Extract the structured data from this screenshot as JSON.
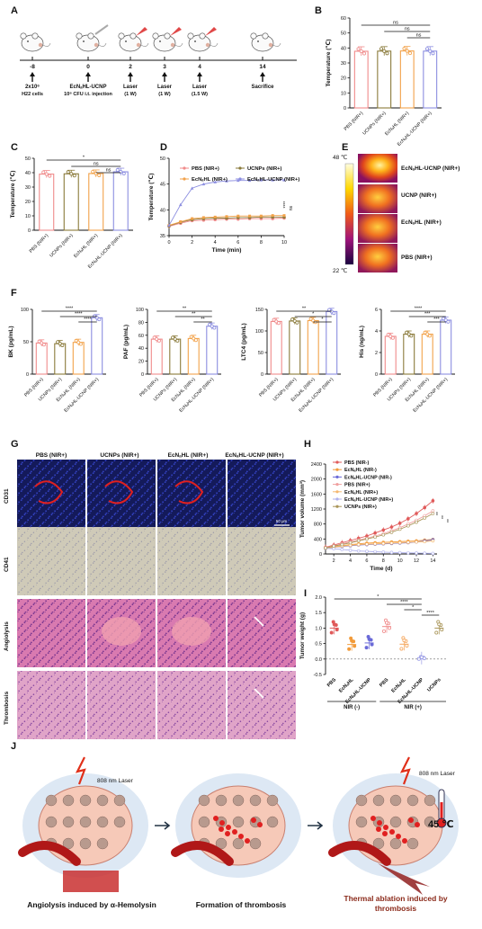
{
  "panels": {
    "A": "A",
    "B": "B",
    "C": "C",
    "D": "D",
    "E": "E",
    "F": "F",
    "G": "G",
    "H": "H",
    "I": "I",
    "J": "J"
  },
  "panelA": {
    "timepoints": [
      "-8",
      "0",
      "2",
      "3",
      "4",
      "14"
    ],
    "events": [
      {
        "line1": "2x10⁶",
        "line2": "H22 cells"
      },
      {
        "line1": "EcNₐHL-UCNP",
        "line2": "10⁸ CFU  i.t. injection"
      },
      {
        "line1": "Laser",
        "line2": "(1 W)"
      },
      {
        "line1": "Laser",
        "line2": "(1 W)"
      },
      {
        "line1": "Laser",
        "line2": "(1.5 W)"
      },
      {
        "line1": "Sacrifice",
        "line2": ""
      }
    ]
  },
  "chart_data": [
    {
      "id": "B",
      "type": "bar",
      "ylabel": "Temperature (℃)",
      "ylim": [
        0,
        60
      ],
      "yticks": [
        "0",
        "10",
        "20",
        "30",
        "40",
        "50",
        "60"
      ],
      "categories": [
        "PBS (NIR+)",
        "UCNPs (NIR+)",
        "EcNₐHL (NIR+)",
        "EcNₐHL-UCNP (NIR+)"
      ],
      "values": [
        37.8,
        37.9,
        38.0,
        37.9
      ],
      "colors": [
        "#f08b8b",
        "#8a7a3a",
        "#f2a24a",
        "#8c8ee0"
      ],
      "sig": [
        "ns",
        "ns",
        "ns"
      ]
    },
    {
      "id": "C",
      "type": "bar",
      "ylabel": "Temperature (℃)",
      "ylim": [
        0,
        50
      ],
      "yticks": [
        "0",
        "10",
        "20",
        "30",
        "40",
        "50"
      ],
      "categories": [
        "PBS (NIR+)",
        "UCNPs (NIR+)",
        "EcNₐHL (NIR+)",
        "EcNₐHL-UCNP (NIR+)"
      ],
      "values": [
        39.0,
        39.2,
        39.4,
        40.6
      ],
      "colors": [
        "#f08b8b",
        "#8a7a3a",
        "#f2a24a",
        "#8c8ee0"
      ],
      "sig": [
        "*",
        "ns",
        "ns"
      ]
    },
    {
      "id": "D",
      "type": "line",
      "xlabel": "Time (min)",
      "ylabel": "Temperature (℃)",
      "xlim": [
        0,
        10
      ],
      "ylim": [
        35,
        50
      ],
      "xticks": [
        "0",
        "2",
        "4",
        "6",
        "8",
        "10"
      ],
      "yticks": [
        "35",
        "40",
        "45",
        "50"
      ],
      "x": [
        0,
        1,
        2,
        3,
        4,
        5,
        6,
        7,
        8,
        9,
        10
      ],
      "series": [
        {
          "name": "PBS (NIR+)",
          "color": "#f08b8b",
          "values": [
            36.8,
            37.4,
            37.9,
            38.0,
            38.1,
            38.2,
            38.2,
            38.3,
            38.3,
            38.3,
            38.4
          ]
        },
        {
          "name": "UCNPs (NIR+)",
          "color": "#8a7a3a",
          "values": [
            36.9,
            37.6,
            38.1,
            38.3,
            38.4,
            38.4,
            38.5,
            38.5,
            38.6,
            38.6,
            38.6
          ]
        },
        {
          "name": "EcNₐHL (NIR+)",
          "color": "#f2a24a",
          "values": [
            37.0,
            37.7,
            38.3,
            38.5,
            38.6,
            38.7,
            38.8,
            38.8,
            38.8,
            38.9,
            38.9
          ]
        },
        {
          "name": "EcNₐHL-UCNP (NIR+)",
          "color": "#8c8ee0",
          "values": [
            37.0,
            41.0,
            44.2,
            45.0,
            45.4,
            45.6,
            45.7,
            45.7,
            45.8,
            45.8,
            45.8
          ]
        }
      ],
      "sig": [
        "****",
        "ns"
      ]
    },
    {
      "id": "F1",
      "type": "bar",
      "ylabel": "BK (pg/mL)",
      "ylim": [
        0,
        100
      ],
      "yticks": [
        "0",
        "50",
        "100"
      ],
      "categories": [
        "PBS (NIR+)",
        "UCNPs (NIR+)",
        "EcNₐHL (NIR+)",
        "EcNₐHL-UCNP (NIR+)"
      ],
      "values": [
        48,
        47,
        49,
        87
      ],
      "colors": [
        "#f08b8b",
        "#8a7a3a",
        "#f2a24a",
        "#8c8ee0"
      ],
      "sig": [
        "****",
        "****",
        "****"
      ]
    },
    {
      "id": "F2",
      "type": "bar",
      "ylabel": "PAF (pg/mL)",
      "ylim": [
        0,
        100
      ],
      "yticks": [
        "0",
        "20",
        "40",
        "60",
        "80",
        "100"
      ],
      "categories": [
        "PBS (NIR+)",
        "UCNPs (NIR+)",
        "EcNₐHL (NIR+)",
        "EcNₐHL-UCNP (NIR+)"
      ],
      "values": [
        54,
        54,
        55,
        74
      ],
      "colors": [
        "#f08b8b",
        "#8a7a3a",
        "#f2a24a",
        "#8c8ee0"
      ],
      "sig": [
        "**",
        "**",
        "**"
      ]
    },
    {
      "id": "F3",
      "type": "bar",
      "ylabel": "LTC4 (pg/mL)",
      "ylim": [
        0,
        150
      ],
      "yticks": [
        "0",
        "50",
        "100",
        "150"
      ],
      "categories": [
        "PBS (NIR+)",
        "UCNPs (NIR+)",
        "EcNₐHL (NIR+)",
        "EcNₐHL-UCNP (NIR+)"
      ],
      "values": [
        122,
        123,
        124,
        145
      ],
      "colors": [
        "#f08b8b",
        "#8a7a3a",
        "#f2a24a",
        "#8c8ee0"
      ],
      "sig": [
        "**",
        "*",
        "*"
      ]
    },
    {
      "id": "F4",
      "type": "bar",
      "ylabel": "His (ng/mL)",
      "ylim": [
        0,
        6
      ],
      "yticks": [
        "0",
        "2",
        "4",
        "6"
      ],
      "categories": [
        "PBS (NIR+)",
        "UCNPs (NIR+)",
        "EcNₐHL (NIR+)",
        "EcNₐHL-UCNP (NIR+)"
      ],
      "values": [
        3.5,
        3.7,
        3.7,
        5.0
      ],
      "colors": [
        "#f08b8b",
        "#8a7a3a",
        "#f2a24a",
        "#8c8ee0"
      ],
      "sig": [
        "****",
        "***",
        "***"
      ]
    },
    {
      "id": "H",
      "type": "line",
      "xlabel": "Time (d)",
      "ylabel": "Tumor volume (mm³)",
      "xlim": [
        1,
        14.5
      ],
      "ylim": [
        0,
        2400
      ],
      "xticks": [
        "2",
        "4",
        "6",
        "8",
        "10",
        "12",
        "14"
      ],
      "yticks": [
        "0",
        "400",
        "800",
        "1200",
        "1600",
        "2000",
        "2400"
      ],
      "x": [
        1,
        2,
        3,
        4,
        5,
        6,
        7,
        8,
        9,
        10,
        11,
        12,
        13,
        14
      ],
      "series": [
        {
          "name": "PBS (NIR-)",
          "color": "#e05a5a",
          "values": [
            180,
            240,
            300,
            360,
            420,
            480,
            560,
            640,
            720,
            820,
            940,
            1080,
            1240,
            1420
          ]
        },
        {
          "name": "EcNₐHL (NIR-)",
          "color": "#f29b3a",
          "values": [
            150,
            190,
            220,
            250,
            270,
            290,
            300,
            310,
            320,
            330,
            340,
            350,
            370,
            390
          ]
        },
        {
          "name": "EcNₐHL-UCNP (NIR-)",
          "color": "#6a6ad8",
          "values": [
            150,
            180,
            200,
            220,
            240,
            250,
            260,
            270,
            280,
            290,
            300,
            320,
            350,
            380
          ]
        },
        {
          "name": "PBS (NIR+)",
          "color": "#f0a0a0",
          "values": [
            170,
            220,
            270,
            320,
            370,
            420,
            480,
            540,
            620,
            700,
            800,
            900,
            1020,
            1150
          ]
        },
        {
          "name": "EcNₐHL (NIR+)",
          "color": "#f5b870",
          "values": [
            150,
            180,
            210,
            230,
            250,
            260,
            270,
            280,
            290,
            300,
            310,
            320,
            330,
            350
          ]
        },
        {
          "name": "EcNₐHL-UCNP (NIR+)",
          "color": "#b0b2ee",
          "values": [
            150,
            140,
            120,
            100,
            80,
            70,
            60,
            50,
            40,
            35,
            30,
            25,
            20,
            15
          ]
        },
        {
          "name": "UCNPs (NIR+)",
          "color": "#a99558",
          "values": [
            160,
            210,
            250,
            300,
            350,
            400,
            450,
            510,
            580,
            660,
            750,
            850,
            960,
            1080
          ]
        }
      ],
      "sig": [
        "**",
        "**",
        "**"
      ]
    },
    {
      "id": "I",
      "type": "scatter",
      "ylabel": "Tumor weight (g)",
      "ylim": [
        -0.5,
        2.0
      ],
      "yticks": [
        "-0.5",
        "0.0",
        "0.5",
        "1.0",
        "1.5",
        "2.0"
      ],
      "categories": [
        "PBS",
        "EcNₐHL",
        "EcNₐHL-UCNP",
        "PBS",
        "EcNₐHL",
        "EcNₐHL-UCNP",
        "UCNPs"
      ],
      "values": [
        1.0,
        0.47,
        0.52,
        1.05,
        0.48,
        0.03,
        1.0
      ],
      "colors": [
        "#e05a5a",
        "#f29b3a",
        "#6a6ad8",
        "#f08b8b",
        "#f5a55a",
        "#9a9ce6",
        "#a99558"
      ],
      "groups": [
        {
          "label": "NIR (-)",
          "from": 0,
          "to": 2
        },
        {
          "label": "NIR (+)",
          "from": 3,
          "to": 6
        }
      ],
      "sig": [
        "*",
        "****",
        "*",
        "****"
      ]
    }
  ],
  "panelE": {
    "scale_top": "48 ℃",
    "scale_bottom": "22 ℃",
    "rows": [
      "EcNₐHL-UCNP (NIR+)",
      "UCNP (NIR+)",
      "EcNₐHL (NIR+)",
      "PBS (NIR+)"
    ]
  },
  "panelG": {
    "columns": [
      "PBS (NIR+)",
      "UCNPs (NIR+)",
      "EcNₐHL (NIR+)",
      "EcNₐHL-UCNP (NIR+)"
    ],
    "rows": [
      "CD31",
      "CD41",
      "Angiolysis",
      "Thrombosis"
    ],
    "scalebar": "50 μm"
  },
  "panelJ": {
    "laser1": "808 nm Laser",
    "laser2": "808 nm Laser",
    "temperature": "45 ℃",
    "caption1": "Angiolysis  induced by α-Hemolysin",
    "caption2": "Formation of thrombosis",
    "caption3": "Thermal ablation induced by thrombosis"
  }
}
